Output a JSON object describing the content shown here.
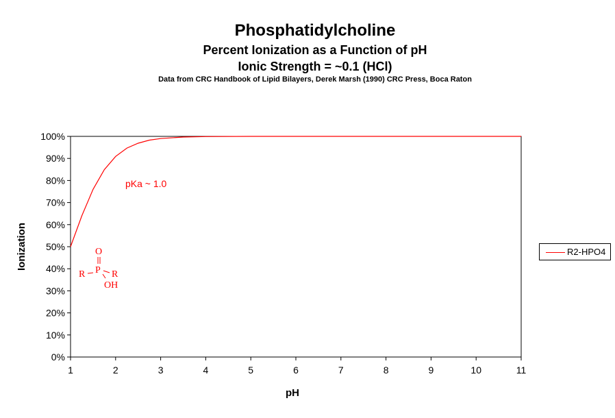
{
  "chart_data": {
    "type": "line",
    "title": "Phosphatidylcholine",
    "subtitle": [
      "Percent Ionization  as a Function of pH",
      "Ionic Strength = ~0.1 (HCl)",
      "Data from CRC  Handbook of Lipid Bilayers, Derek Marsh (1990)  CRC Press,  Boca Raton"
    ],
    "xlabel": "pH",
    "ylabel": "Ionization",
    "xlim": [
      1,
      11
    ],
    "ylim": [
      0,
      100
    ],
    "xticks": [
      "1",
      "2",
      "3",
      "4",
      "5",
      "6",
      "7",
      "8",
      "9",
      "10",
      "11"
    ],
    "yticks": [
      "0%",
      "10%",
      "20%",
      "30%",
      "40%",
      "50%",
      "60%",
      "70%",
      "80%",
      "90%",
      "100%"
    ],
    "grid": false,
    "legend_position": "right",
    "series": [
      {
        "name": "R2-HPO4",
        "color": "#ff0000",
        "x": [
          1,
          1.25,
          1.5,
          1.75,
          2,
          2.25,
          2.5,
          2.75,
          3,
          3.5,
          4,
          5,
          6,
          7,
          8,
          9,
          10,
          11
        ],
        "y": [
          50,
          64.0,
          76.0,
          84.9,
          90.9,
          94.7,
          96.9,
          98.3,
          99.0,
          99.7,
          99.9,
          100,
          100,
          100,
          100,
          100,
          100,
          100
        ]
      }
    ],
    "annotations": {
      "pka": "pKa ~ 1.0",
      "structure": {
        "o": "O",
        "p": "P",
        "r1": "R",
        "r2": "R",
        "oh": "OH"
      }
    }
  }
}
